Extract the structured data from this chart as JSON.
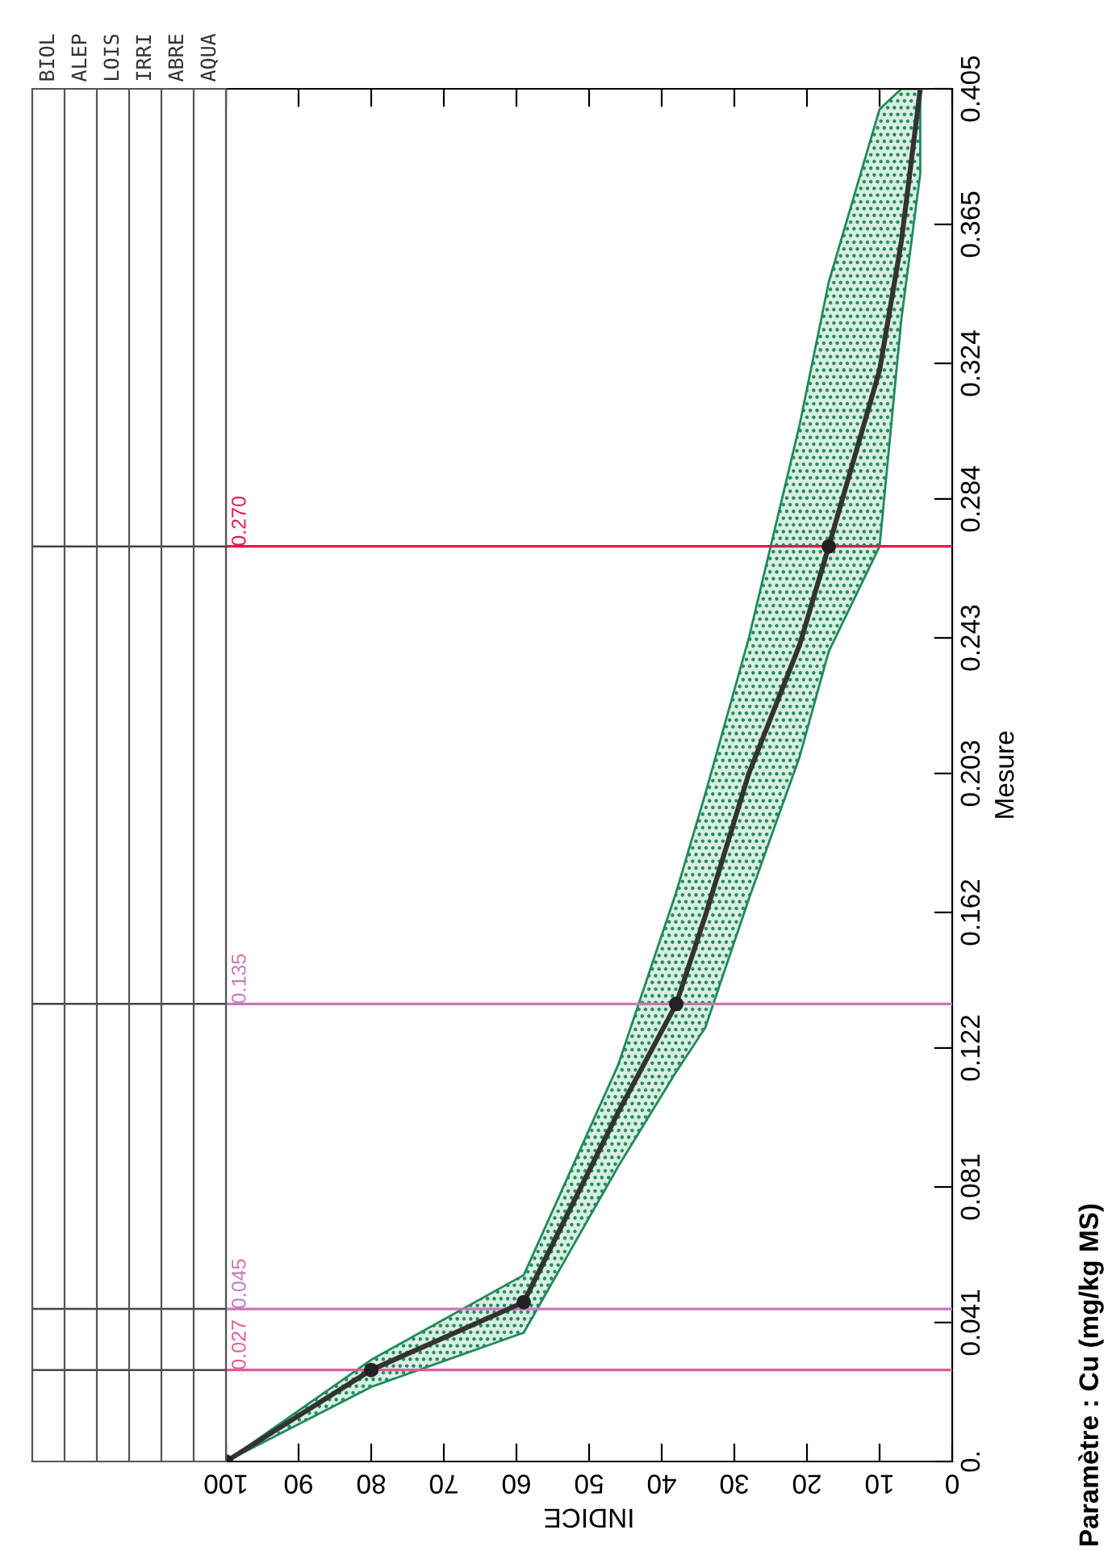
{
  "chart_data": {
    "type": "line",
    "xlabel": "INDICE",
    "ylabel": "Mesure",
    "xlim": [
      100,
      0
    ],
    "xticks": [
      100,
      90,
      80,
      70,
      60,
      50,
      40,
      30,
      20,
      10,
      0
    ],
    "ylim": [
      0,
      0.405
    ],
    "yticks": [
      {
        "value": 0,
        "label": "0."
      },
      0.041,
      0.081,
      0.122,
      0.162,
      0.203,
      0.243,
      0.284,
      0.324,
      0.365,
      0.405
    ],
    "grid": false,
    "series": [
      {
        "color": "#333333",
        "marker": "none",
        "x": [
          100,
          80,
          59,
          46,
          38,
          34,
          28,
          21,
          17,
          10,
          7,
          4.4
        ],
        "values": [
          0,
          0.027,
          0.047,
          0.103,
          0.135,
          0.161,
          0.203,
          0.241,
          0.27,
          0.322,
          0.36,
          0.405
        ],
        "lower": [
          0,
          0.022,
          0.038,
          0.087,
          0.115,
          0.128,
          0.166,
          0.208,
          0.239,
          0.27,
          0.337,
          0.38
        ],
        "upper": [
          0,
          0.03,
          0.055,
          0.117,
          0.168,
          0.197,
          0.243,
          0.306,
          0.348,
          0.399,
          0.405,
          0.405
        ]
      },
      {
        "type": "scatter",
        "color": "#222222",
        "marker": "circle",
        "x": [
          100,
          80,
          59,
          38,
          17
        ],
        "values": [
          0,
          0.027,
          0.047,
          0.135,
          0.27
        ]
      }
    ],
    "ref_lines": [
      {
        "axis": "y",
        "value": 0.027,
        "label": "0.027",
        "color": "#e05a9c"
      },
      {
        "axis": "y",
        "value": 0.045,
        "label": "0.045",
        "color": "#c878b8"
      },
      {
        "axis": "y",
        "value": 0.135,
        "label": "0.135",
        "color": "#c878b8"
      },
      {
        "axis": "y",
        "value": 0.27,
        "label": "0.270",
        "color": "#e8174a"
      }
    ],
    "annotations": [
      "BIOL",
      "ALEP",
      "LOIS",
      "IRRI",
      "ABRE",
      "AQUA",
      "Paramètre : Cu (mg/kg MS)"
    ]
  }
}
